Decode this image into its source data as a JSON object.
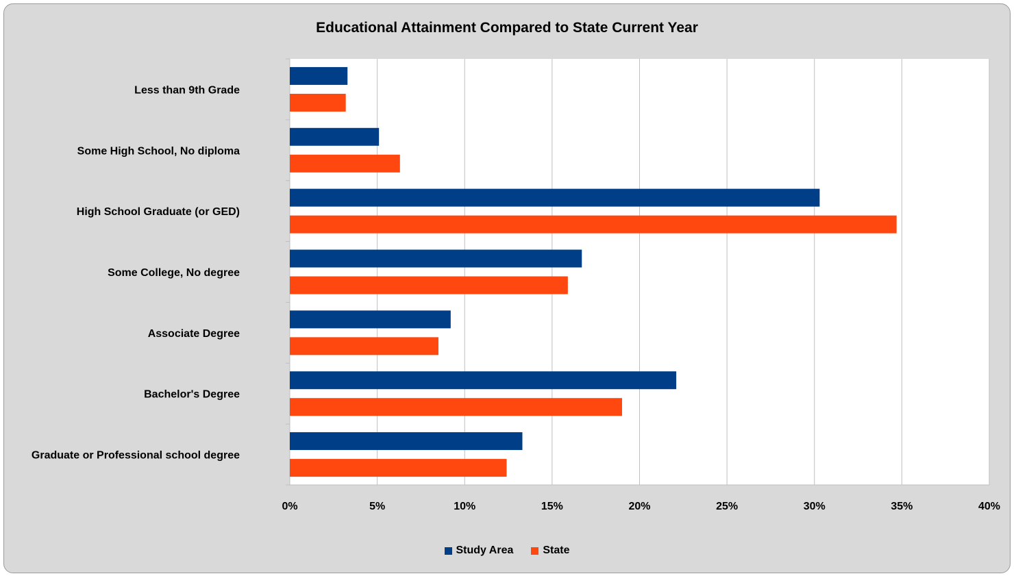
{
  "chart_data": {
    "type": "bar",
    "orientation": "horizontal",
    "title": "Educational Attainment Compared to State Current Year",
    "categories": [
      "Less than 9th Grade",
      "Some High School, No diploma",
      "High School Graduate (or GED)",
      "Some College, No degree",
      "Associate Degree",
      "Bachelor's Degree",
      "Graduate or Professional school degree"
    ],
    "series": [
      {
        "name": "Study Area",
        "color": "#003f87",
        "values": [
          3.3,
          5.1,
          30.3,
          16.7,
          9.2,
          22.1,
          13.3
        ]
      },
      {
        "name": "State",
        "color": "#ff4710",
        "values": [
          3.2,
          6.3,
          34.7,
          15.9,
          8.5,
          19.0,
          12.4
        ]
      }
    ],
    "xlim": [
      0,
      40
    ],
    "xticks": [
      "0%",
      "5%",
      "10%",
      "15%",
      "20%",
      "25%",
      "30%",
      "35%",
      "40%"
    ],
    "xlabel": "",
    "ylabel": "",
    "grid": "vertical",
    "legend": "bottom"
  }
}
